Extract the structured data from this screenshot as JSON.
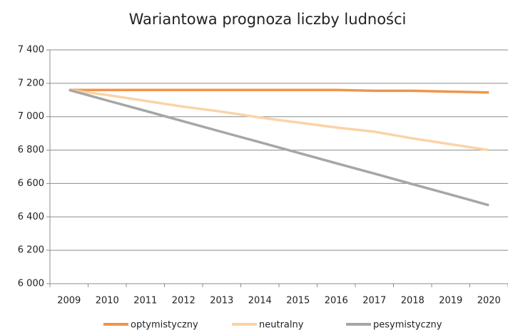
{
  "chart_data": {
    "type": "line",
    "title": "Wariantowa prognoza liczby ludności",
    "categories": [
      "2009",
      "2010",
      "2011",
      "2012",
      "2013",
      "2014",
      "2015",
      "2016",
      "2017",
      "2018",
      "2019",
      "2020"
    ],
    "series": [
      {
        "name": "optymistyczny",
        "color": "#f0954a",
        "values": [
          7160,
          7160,
          7160,
          7160,
          7160,
          7160,
          7160,
          7160,
          7155,
          7155,
          7150,
          7145
        ]
      },
      {
        "name": "neutralny",
        "color": "#fbd3a7",
        "values": [
          7160,
          7130,
          7095,
          7060,
          7030,
          6995,
          6965,
          6935,
          6910,
          6870,
          6835,
          6800
        ]
      },
      {
        "name": "pesymistyczny",
        "color": "#a6a6a6",
        "values": [
          7160,
          7097,
          7035,
          6972,
          6909,
          6847,
          6784,
          6721,
          6659,
          6596,
          6533,
          6470
        ]
      }
    ],
    "ylim": [
      6000,
      7400
    ],
    "yticks": [
      {
        "value": 6000,
        "label": "6 000"
      },
      {
        "value": 6200,
        "label": "6 200"
      },
      {
        "value": 6400,
        "label": "6 400"
      },
      {
        "value": 6600,
        "label": "6 600"
      },
      {
        "value": 6800,
        "label": "6 800"
      },
      {
        "value": 7000,
        "label": "7 000"
      },
      {
        "value": 7200,
        "label": "7 200"
      },
      {
        "value": 7400,
        "label": "7 400"
      }
    ],
    "grid": true,
    "legend": "bottom"
  }
}
